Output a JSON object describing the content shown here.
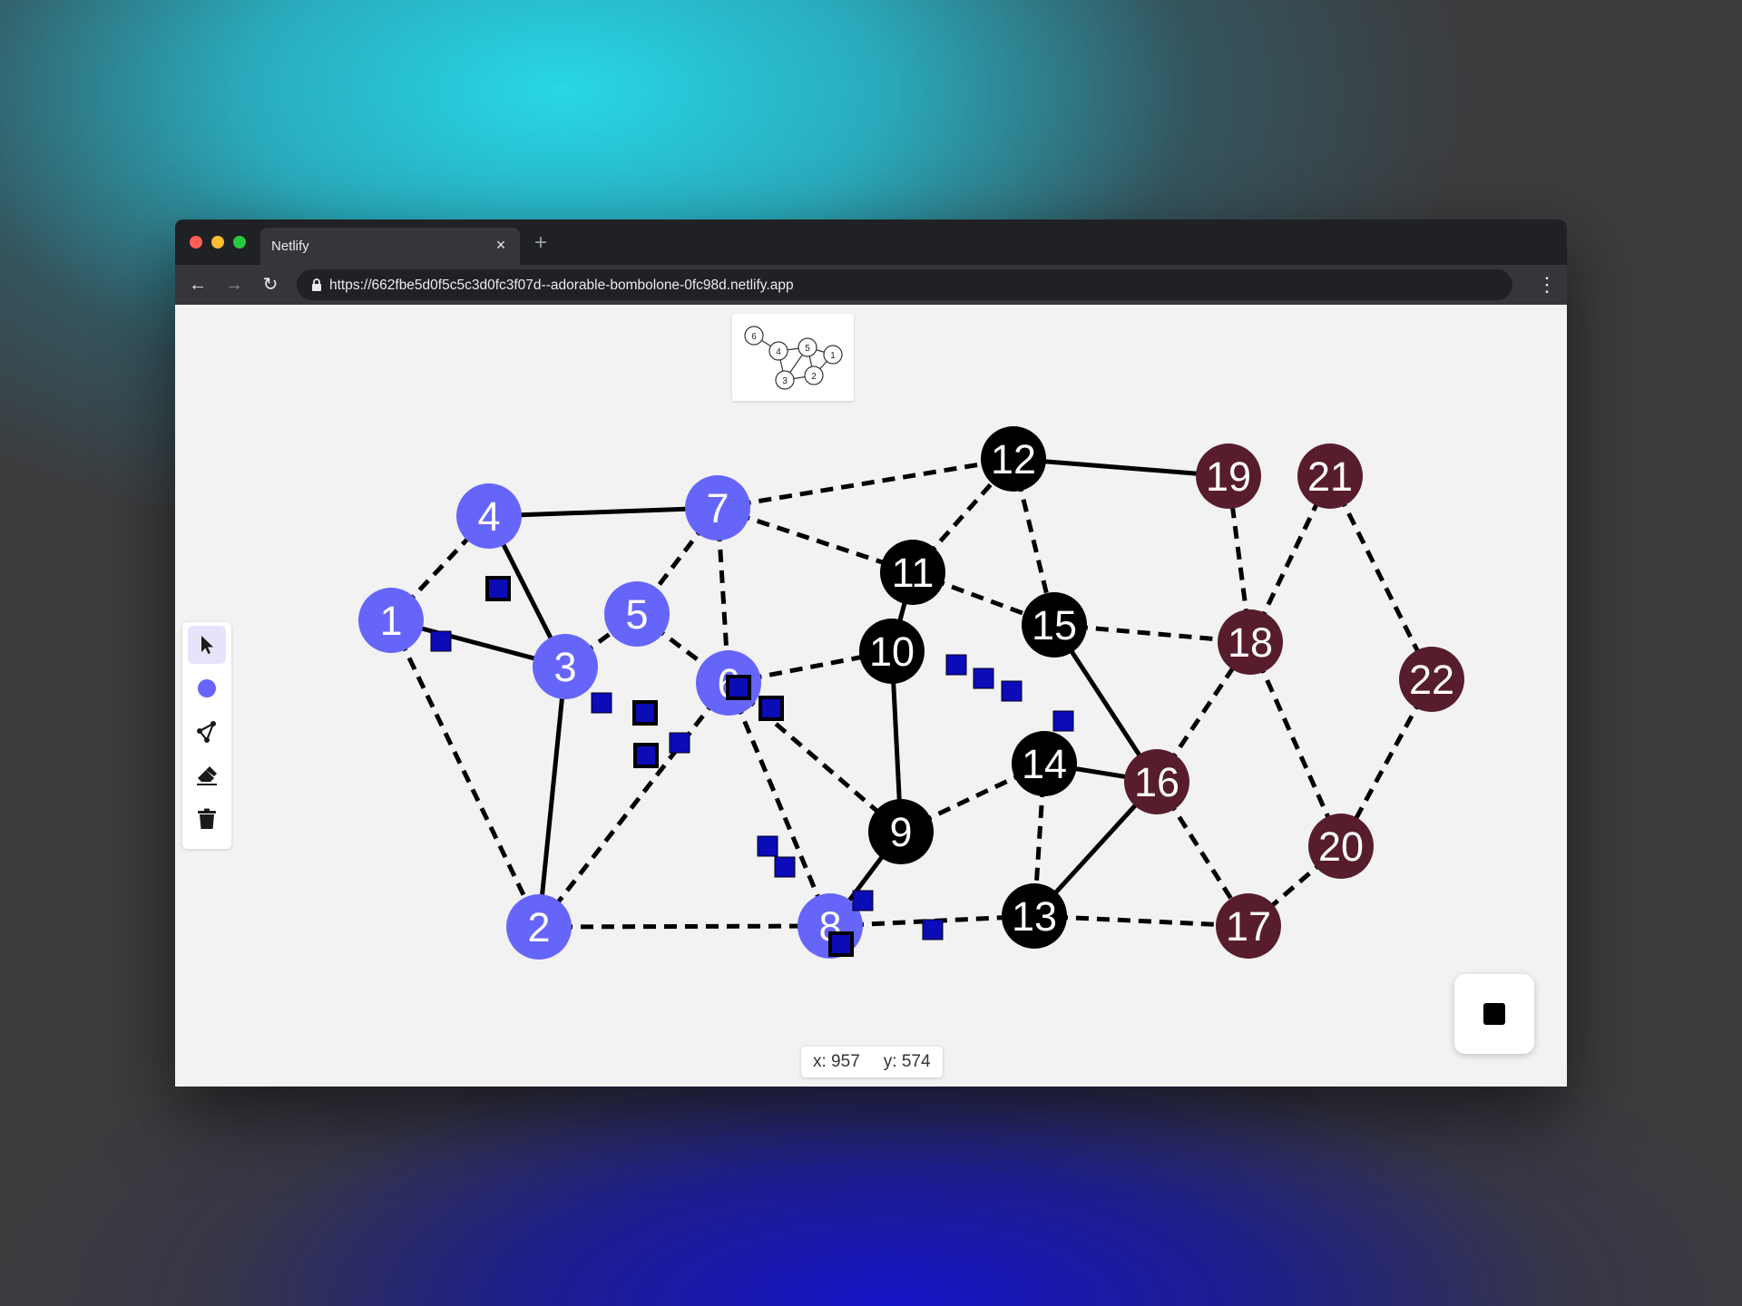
{
  "browser": {
    "tab_title": "Netlify",
    "tab_close": "×",
    "new_tab": "+",
    "url": "https://662fbe5d0f5c5c3d0fc3f07d--adorable-bombolone-0fc98d.netlify.app",
    "back": "←",
    "forward": "→",
    "reload": "↻",
    "menu": "⋮"
  },
  "colors": {
    "group_a": "#6665fa",
    "group_b": "#000000",
    "group_c": "#571d2d",
    "marker": "#0b0bb8",
    "tool_active_bg": "#e6e4fb"
  },
  "toolbar": {
    "tools": [
      {
        "name": "select-tool",
        "icon": "cursor-icon",
        "active": true
      },
      {
        "name": "node-tool",
        "icon": "circle-icon",
        "active": false
      },
      {
        "name": "edge-tool",
        "icon": "edge-icon",
        "active": false
      },
      {
        "name": "eraser-tool",
        "icon": "eraser-icon",
        "active": false
      },
      {
        "name": "clear-tool",
        "icon": "trash-icon",
        "active": false
      }
    ]
  },
  "coords": {
    "x_text": "x: 957",
    "y_text": "y: 574"
  },
  "stop_button": {
    "icon": "stop-icon"
  },
  "thumbnail": {
    "labels": [
      "6",
      "4",
      "5",
      "1",
      "3",
      "2"
    ]
  },
  "graph": {
    "nodes": [
      {
        "id": "1",
        "group": "a"
      },
      {
        "id": "2",
        "group": "a"
      },
      {
        "id": "3",
        "group": "a"
      },
      {
        "id": "4",
        "group": "a"
      },
      {
        "id": "5",
        "group": "a"
      },
      {
        "id": "6",
        "group": "a"
      },
      {
        "id": "7",
        "group": "a"
      },
      {
        "id": "8",
        "group": "a"
      },
      {
        "id": "9",
        "group": "b"
      },
      {
        "id": "10",
        "group": "b"
      },
      {
        "id": "11",
        "group": "b"
      },
      {
        "id": "12",
        "group": "b"
      },
      {
        "id": "13",
        "group": "b"
      },
      {
        "id": "14",
        "group": "b"
      },
      {
        "id": "15",
        "group": "b"
      },
      {
        "id": "16",
        "group": "c"
      },
      {
        "id": "17",
        "group": "c"
      },
      {
        "id": "18",
        "group": "c"
      },
      {
        "id": "19",
        "group": "c"
      },
      {
        "id": "20",
        "group": "c"
      },
      {
        "id": "21",
        "group": "c"
      },
      {
        "id": "22",
        "group": "c"
      }
    ],
    "edges": [
      {
        "from": "1",
        "to": "4",
        "style": "dashed"
      },
      {
        "from": "1",
        "to": "3",
        "style": "solid"
      },
      {
        "from": "1",
        "to": "2",
        "style": "dashed"
      },
      {
        "from": "4",
        "to": "7",
        "style": "solid"
      },
      {
        "from": "4",
        "to": "3",
        "style": "solid"
      },
      {
        "from": "3",
        "to": "2",
        "style": "solid"
      },
      {
        "from": "3",
        "to": "5",
        "style": "dashed"
      },
      {
        "from": "7",
        "to": "5",
        "style": "dashed"
      },
      {
        "from": "7",
        "to": "6",
        "style": "dashed"
      },
      {
        "from": "7",
        "to": "12",
        "style": "dashed"
      },
      {
        "from": "7",
        "to": "11",
        "style": "dashed"
      },
      {
        "from": "5",
        "to": "6",
        "style": "dashed"
      },
      {
        "from": "6",
        "to": "10",
        "style": "dashed"
      },
      {
        "from": "6",
        "to": "2",
        "style": "dashed"
      },
      {
        "from": "6",
        "to": "9",
        "style": "dashed"
      },
      {
        "from": "6",
        "to": "8",
        "style": "dashed"
      },
      {
        "from": "2",
        "to": "8",
        "style": "dashed"
      },
      {
        "from": "8",
        "to": "9",
        "style": "solid"
      },
      {
        "from": "8",
        "to": "13",
        "style": "dashed"
      },
      {
        "from": "10",
        "to": "11",
        "style": "solid"
      },
      {
        "from": "10",
        "to": "9",
        "style": "solid"
      },
      {
        "from": "11",
        "to": "12",
        "style": "dashed"
      },
      {
        "from": "11",
        "to": "15",
        "style": "dashed"
      },
      {
        "from": "12",
        "to": "19",
        "style": "solid"
      },
      {
        "from": "12",
        "to": "15",
        "style": "dashed"
      },
      {
        "from": "15",
        "to": "18",
        "style": "dashed"
      },
      {
        "from": "15",
        "to": "16",
        "style": "solid"
      },
      {
        "from": "9",
        "to": "14",
        "style": "dashed"
      },
      {
        "from": "14",
        "to": "16",
        "style": "solid"
      },
      {
        "from": "14",
        "to": "13",
        "style": "dashed"
      },
      {
        "from": "13",
        "to": "16",
        "style": "solid"
      },
      {
        "from": "13",
        "to": "17",
        "style": "dashed"
      },
      {
        "from": "16",
        "to": "18",
        "style": "dashed"
      },
      {
        "from": "16",
        "to": "17",
        "style": "dashed"
      },
      {
        "from": "18",
        "to": "19",
        "style": "dashed"
      },
      {
        "from": "18",
        "to": "21",
        "style": "dashed"
      },
      {
        "from": "18",
        "to": "20",
        "style": "dashed"
      },
      {
        "from": "21",
        "to": "22",
        "style": "dashed"
      },
      {
        "from": "22",
        "to": "20",
        "style": "dashed"
      },
      {
        "from": "20",
        "to": "17",
        "style": "dashed"
      }
    ]
  }
}
